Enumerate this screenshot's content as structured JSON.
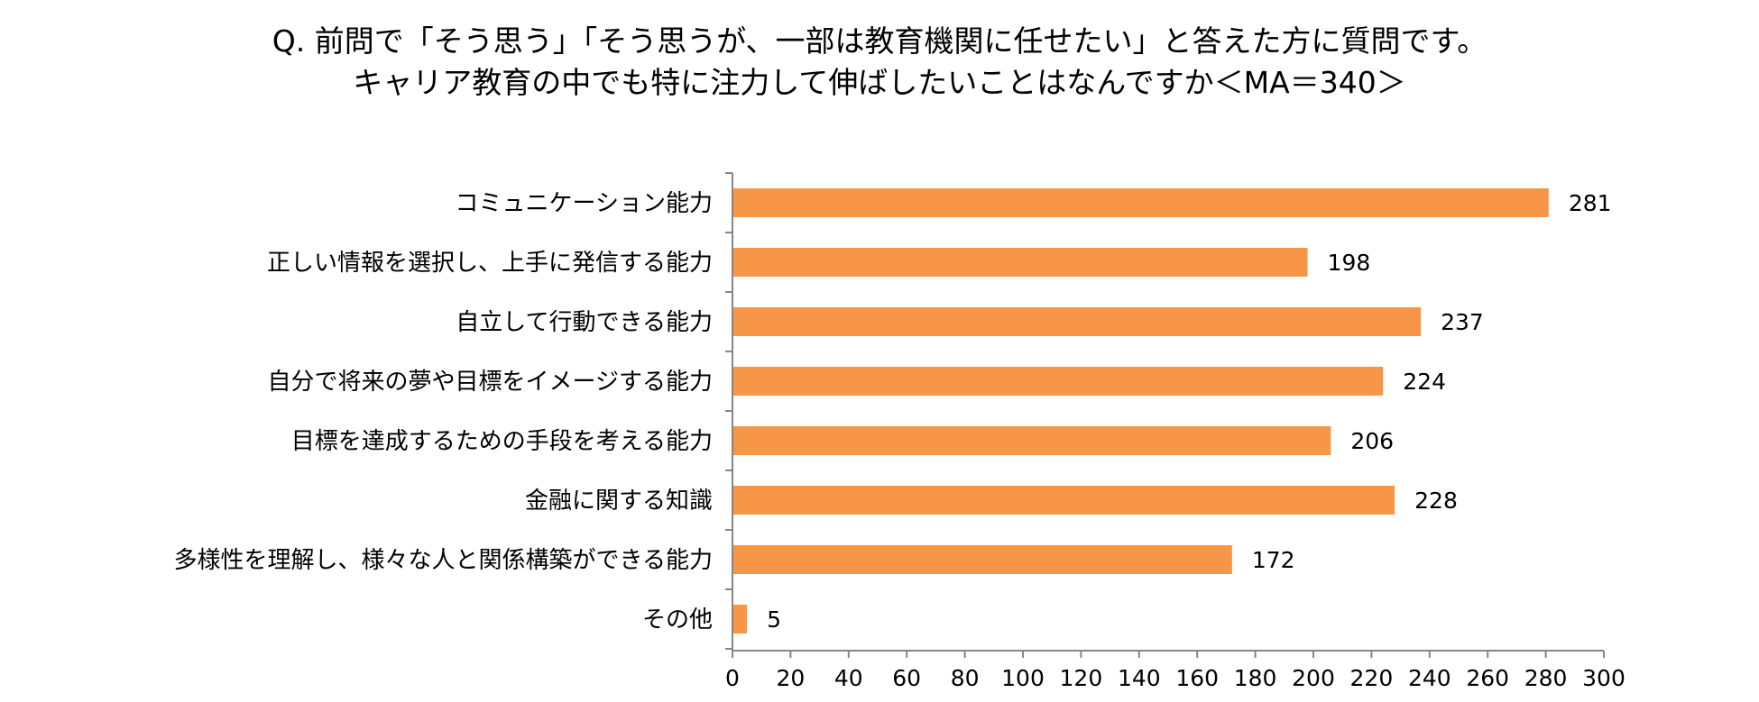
{
  "chart_data": {
    "type": "bar",
    "orientation": "horizontal",
    "title_lines": [
      "Q. 前問で「そう思う」「そう思うが、一部は教育機関に任せたい」と答えた方に質問です。",
      "キャリア教育の中でも特に注力して伸ばしたいことはなんですか＜MA＝340＞"
    ],
    "categories": [
      "コミュニケーション能力",
      "正しい情報を選択し、上手に発信する能力",
      "自立して行動できる能力",
      "自分で将来の夢や目標をイメージする能力",
      "目標を達成するための手段を考える能力",
      "金融に関する知識",
      "多様性を理解し、様々な人と関係構築ができる能力",
      "その他"
    ],
    "values": [
      281,
      198,
      237,
      224,
      206,
      228,
      172,
      5
    ],
    "xlim": [
      0,
      300
    ],
    "xticks": [
      0,
      20,
      40,
      60,
      80,
      100,
      120,
      140,
      160,
      180,
      200,
      220,
      240,
      260,
      280,
      300
    ],
    "xlabel": "",
    "ylabel": "",
    "grid": false,
    "legend": "none",
    "bar_color": "#F79646",
    "axis_color": "#868686"
  }
}
